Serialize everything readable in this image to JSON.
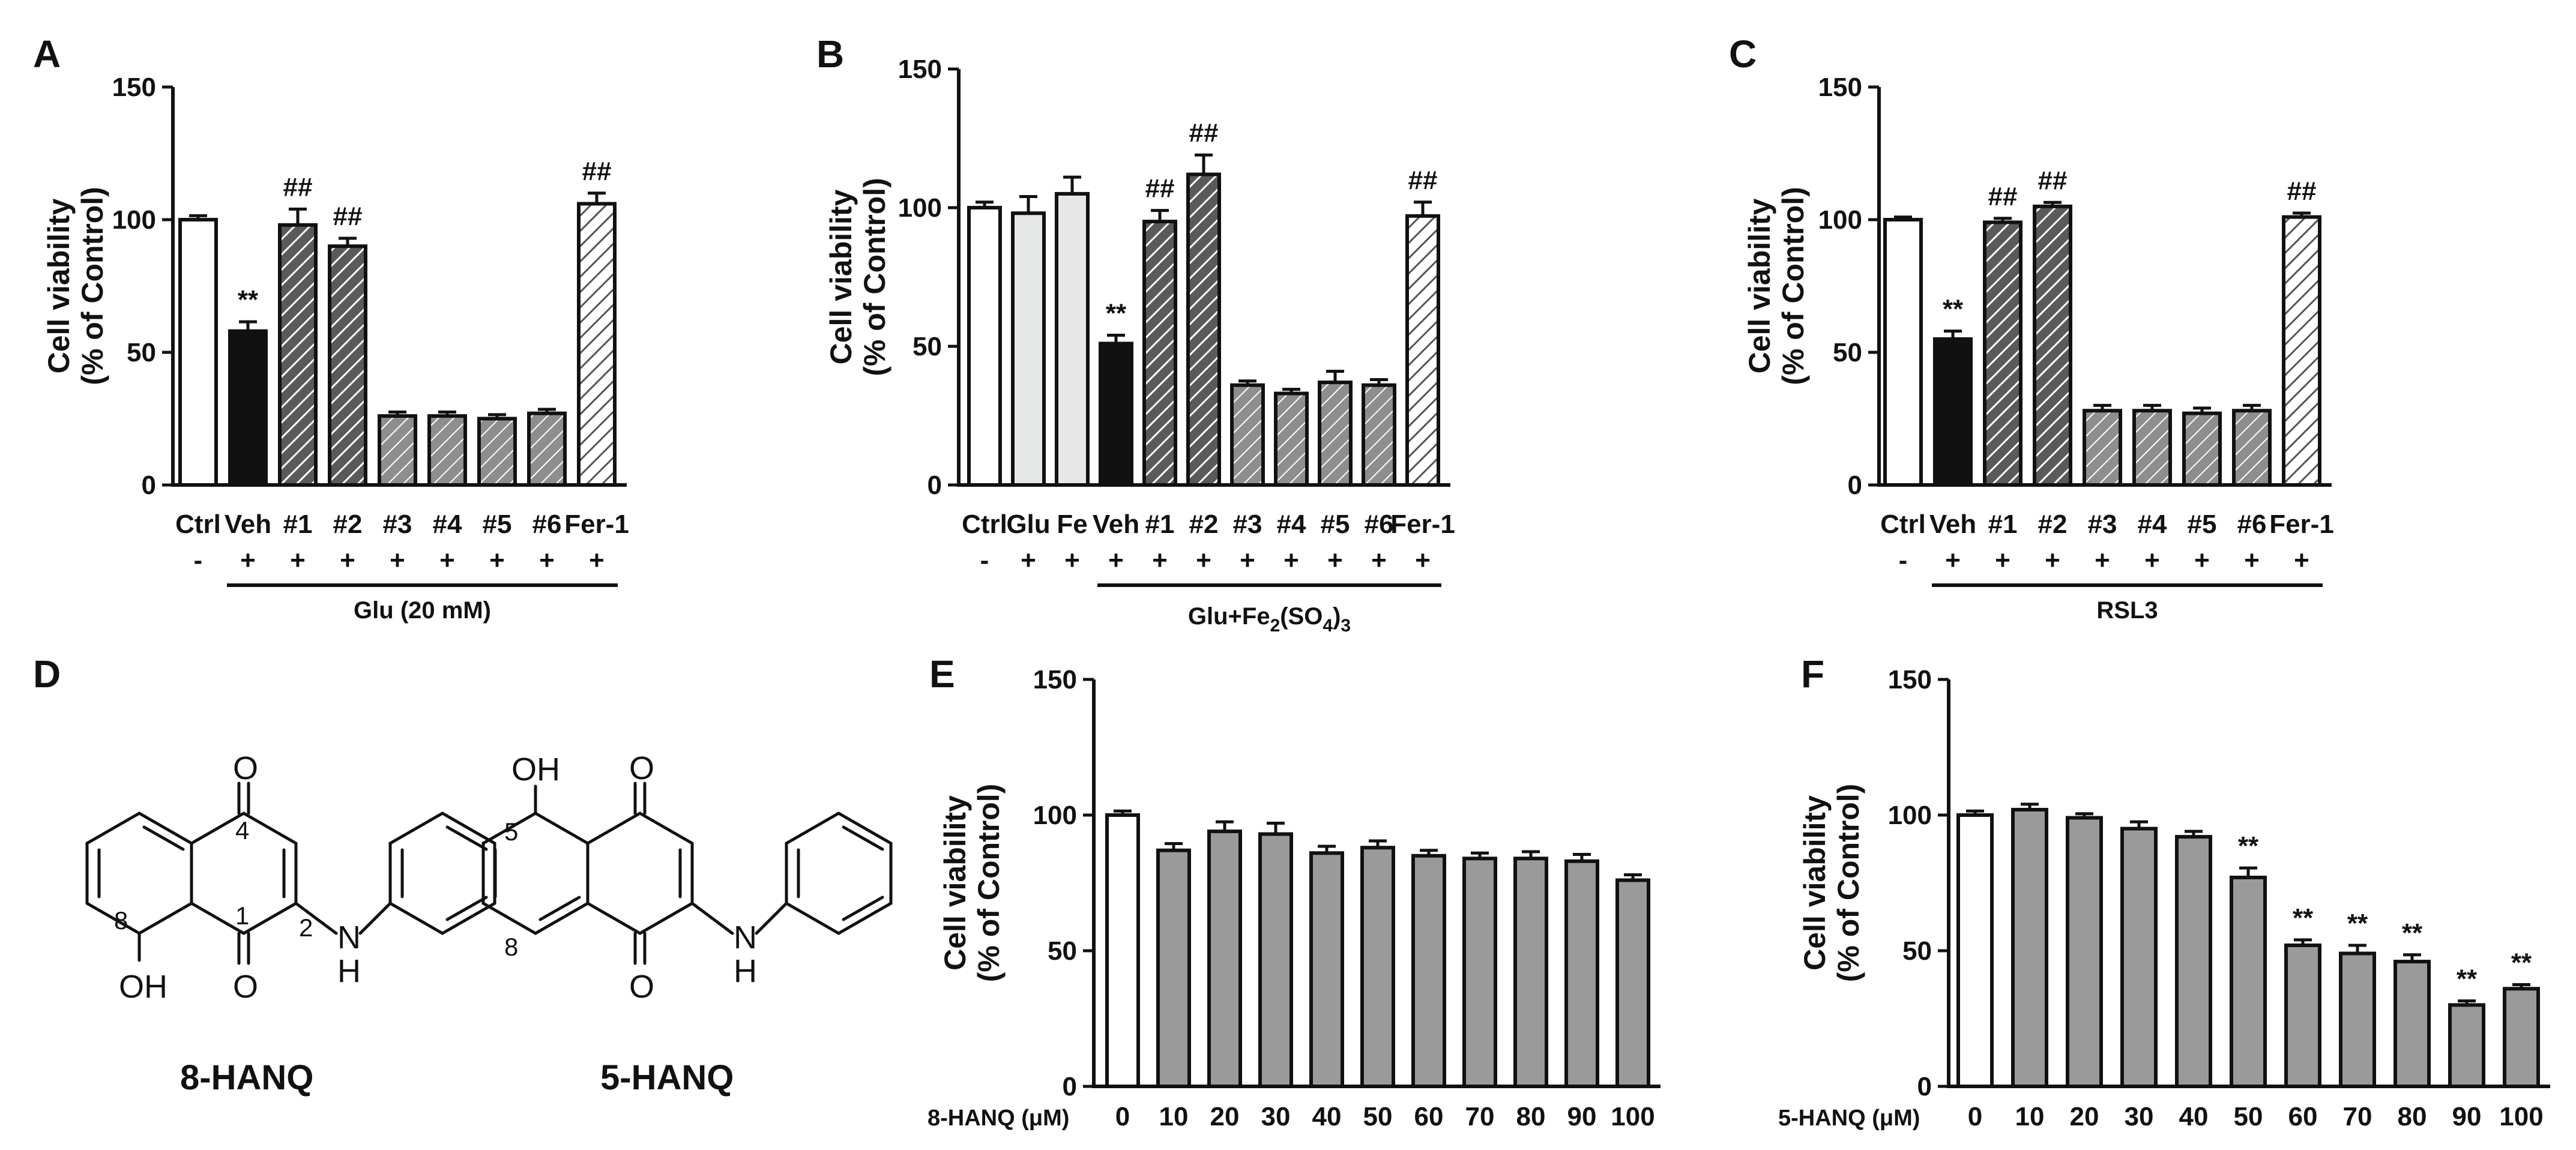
{
  "figure": {
    "panels": [
      {
        "id": "A",
        "letter": "A"
      },
      {
        "id": "B",
        "letter": "B"
      },
      {
        "id": "C",
        "letter": "C"
      },
      {
        "id": "D",
        "letter": "D"
      },
      {
        "id": "E",
        "letter": "E"
      },
      {
        "id": "F",
        "letter": "F"
      }
    ]
  },
  "colors": {
    "white": "#ffffff",
    "black": "#111111",
    "light_gray": "#e6e8e8",
    "mid_gray": "#9a9a9a",
    "hatch_dark": "#5a5a5a",
    "hatch_medium": "#8e8e8e",
    "hatch_light": "#c4c4c4"
  },
  "structures": {
    "left": {
      "name": "8-HANQ",
      "atoms": [
        "O",
        "O",
        "OH",
        "N",
        "H"
      ],
      "numbers": [
        "4",
        "1",
        "2",
        "8"
      ]
    },
    "right": {
      "name": "5-HANQ",
      "atoms": [
        "OH",
        "O",
        "O",
        "N",
        "H"
      ],
      "numbers": [
        "5",
        "8"
      ]
    }
  },
  "chart_data": [
    {
      "panel": "A",
      "type": "bar",
      "ylabel_line1": "Cell viability",
      "ylabel_line2": "(% of Control)",
      "ylim": [
        0,
        150
      ],
      "yticks": [
        "0",
        "50",
        "100",
        "150"
      ],
      "categories": [
        "Ctrl",
        "Veh",
        "#1",
        "#2",
        "#3",
        "#4",
        "#5",
        "#6",
        "Fer-1"
      ],
      "values": [
        100,
        58,
        98,
        90,
        26,
        26,
        25,
        27,
        106
      ],
      "errors": [
        1.5,
        3.5,
        6,
        3,
        1.5,
        1.5,
        1.5,
        1.5,
        4
      ],
      "fills": [
        "white",
        "black",
        "hatch_dark",
        "hatch_dark",
        "hatch_medium",
        "hatch_medium",
        "hatch_medium",
        "hatch_medium",
        "hatch_light"
      ],
      "signs": [
        "-",
        "+",
        "+",
        "+",
        "+",
        "+",
        "+",
        "+",
        "+"
      ],
      "annotations": [
        "",
        "**",
        "##",
        "##",
        "",
        "",
        "",
        "",
        "##"
      ],
      "group_label": "Glu (20 mM)",
      "group_range": [
        1,
        8
      ]
    },
    {
      "panel": "B",
      "type": "bar",
      "ylabel_line1": "Cell viability",
      "ylabel_line2": "(% of Control)",
      "ylim": [
        0,
        150
      ],
      "yticks": [
        "0",
        "50",
        "100",
        "150"
      ],
      "categories": [
        "Ctrl",
        "Glu",
        "Fe",
        "Veh",
        "#1",
        "#2",
        "#3",
        "#4",
        "#5",
        "#6",
        "Fer-1"
      ],
      "values": [
        100,
        98,
        105,
        51,
        95,
        112,
        36,
        33,
        37,
        36,
        97
      ],
      "errors": [
        2,
        6,
        6,
        3,
        4,
        7,
        1.5,
        1.5,
        4,
        2,
        5
      ],
      "fills": [
        "white",
        "light_gray",
        "light_gray",
        "black",
        "hatch_dark",
        "hatch_dark",
        "hatch_medium",
        "hatch_medium",
        "hatch_medium",
        "hatch_medium",
        "hatch_light"
      ],
      "signs": [
        "-",
        "+",
        "+",
        "+",
        "+",
        "+",
        "+",
        "+",
        "+",
        "+",
        "+"
      ],
      "annotations": [
        "",
        "",
        "",
        "**",
        "##",
        "##",
        "",
        "",
        "",
        "",
        "##"
      ],
      "group_label_main": "Glu+Fe",
      "group_label_sub1": "2",
      "group_label_mid": "(SO",
      "group_label_sub2": "4",
      "group_label_close": ")",
      "group_label_sub3": "3",
      "group_range": [
        3,
        10
      ]
    },
    {
      "panel": "C",
      "type": "bar",
      "ylabel_line1": "Cell viability",
      "ylabel_line2": "(% of Control)",
      "ylim": [
        0,
        150
      ],
      "yticks": [
        "0",
        "50",
        "100",
        "150"
      ],
      "categories": [
        "Ctrl",
        "Veh",
        "#1",
        "#2",
        "#3",
        "#4",
        "#5",
        "#6",
        "Fer-1"
      ],
      "values": [
        100,
        55,
        99,
        105,
        28,
        28,
        27,
        28,
        101
      ],
      "errors": [
        1,
        3,
        1.5,
        1.5,
        2,
        2,
        2,
        2,
        1.5
      ],
      "fills": [
        "white",
        "black",
        "hatch_dark",
        "hatch_dark",
        "hatch_medium",
        "hatch_medium",
        "hatch_medium",
        "hatch_medium",
        "hatch_light"
      ],
      "signs": [
        "-",
        "+",
        "+",
        "+",
        "+",
        "+",
        "+",
        "+",
        "+"
      ],
      "annotations": [
        "",
        "**",
        "##",
        "##",
        "",
        "",
        "",
        "",
        "##"
      ],
      "group_label": "RSL3",
      "group_range": [
        1,
        8
      ]
    },
    {
      "panel": "E",
      "type": "bar",
      "ylabel_line1": "Cell viability",
      "ylabel_line2": "(% of Control)",
      "ylim": [
        0,
        150
      ],
      "yticks": [
        "0",
        "50",
        "100",
        "150"
      ],
      "xtitle": "8-HANQ (μM)",
      "categories": [
        "0",
        "10",
        "20",
        "30",
        "40",
        "50",
        "60",
        "70",
        "80",
        "90",
        "100"
      ],
      "values": [
        100,
        87,
        94,
        93,
        86,
        88,
        85,
        84,
        84,
        83,
        76
      ],
      "errors": [
        1.5,
        2.5,
        3.5,
        4,
        2.5,
        2.5,
        2,
        2,
        2.5,
        2.5,
        2
      ],
      "fills": [
        "white",
        "mid_gray",
        "mid_gray",
        "mid_gray",
        "mid_gray",
        "mid_gray",
        "mid_gray",
        "mid_gray",
        "mid_gray",
        "mid_gray",
        "mid_gray"
      ],
      "annotations": [
        "",
        "",
        "",
        "",
        "",
        "",
        "",
        "",
        "",
        "",
        ""
      ]
    },
    {
      "panel": "F",
      "type": "bar",
      "ylabel_line1": "Cell viability",
      "ylabel_line2": "(% of Control)",
      "ylim": [
        0,
        150
      ],
      "yticks": [
        "0",
        "50",
        "100",
        "150"
      ],
      "xtitle": "5-HANQ (μM)",
      "categories": [
        "0",
        "10",
        "20",
        "30",
        "40",
        "50",
        "60",
        "70",
        "80",
        "90",
        "100"
      ],
      "values": [
        100,
        102,
        99,
        95,
        92,
        77,
        52,
        49,
        46,
        30,
        36
      ],
      "errors": [
        1.5,
        2,
        1.5,
        2.5,
        2,
        3.5,
        2,
        3,
        2.5,
        1.5,
        1.5
      ],
      "fills": [
        "white",
        "mid_gray",
        "mid_gray",
        "mid_gray",
        "mid_gray",
        "mid_gray",
        "mid_gray",
        "mid_gray",
        "mid_gray",
        "mid_gray",
        "mid_gray"
      ],
      "annotations": [
        "",
        "",
        "",
        "",
        "",
        "**",
        "**",
        "**",
        "**",
        "**",
        "**"
      ]
    }
  ]
}
